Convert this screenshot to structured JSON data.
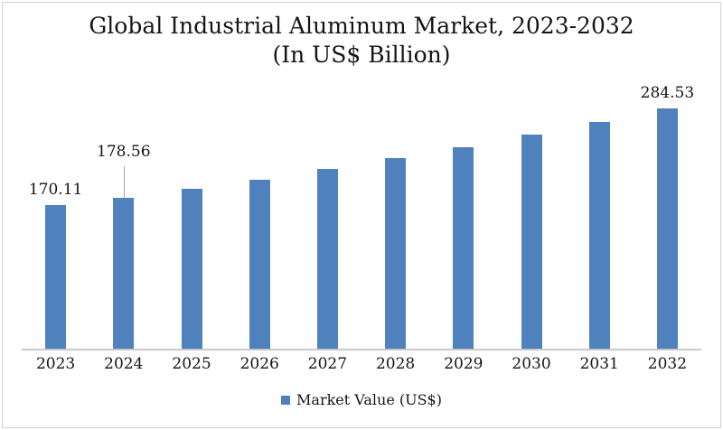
{
  "title": {
    "line1": "Global Industrial Aluminum Market, 2023-2032",
    "line2": "(In US$ Billion)"
  },
  "legend": {
    "label": "Market Value (US$)",
    "marker_color": "#4F81BD"
  },
  "colors": {
    "bar": "#4F81BD",
    "axis_line": "#C9C9C9",
    "leader_line": "#A6A6A6",
    "frame_border": "#D3D3D3",
    "text": "#151515"
  },
  "chart_data": {
    "type": "bar",
    "title": "Global Industrial Aluminum Market, 2023-2032 (In US$ Billion)",
    "categories": [
      "2023",
      "2024",
      "2025",
      "2026",
      "2027",
      "2028",
      "2029",
      "2030",
      "2031",
      "2032"
    ],
    "values": [
      170.11,
      178.56,
      189.27,
      200.63,
      212.67,
      225.43,
      238.95,
      253.29,
      268.49,
      284.53
    ],
    "data_labels": [
      {
        "category": "2023",
        "text": "170.11",
        "callout": false
      },
      {
        "category": "2024",
        "text": "178.56",
        "callout": true
      },
      {
        "category": "2032",
        "text": "284.53",
        "callout": false
      }
    ],
    "xlabel": "",
    "ylabel": "",
    "ylim": [
      0,
      320
    ],
    "grid": false,
    "legend": [
      "Market Value (US$)"
    ],
    "legend_position": "bottom"
  }
}
